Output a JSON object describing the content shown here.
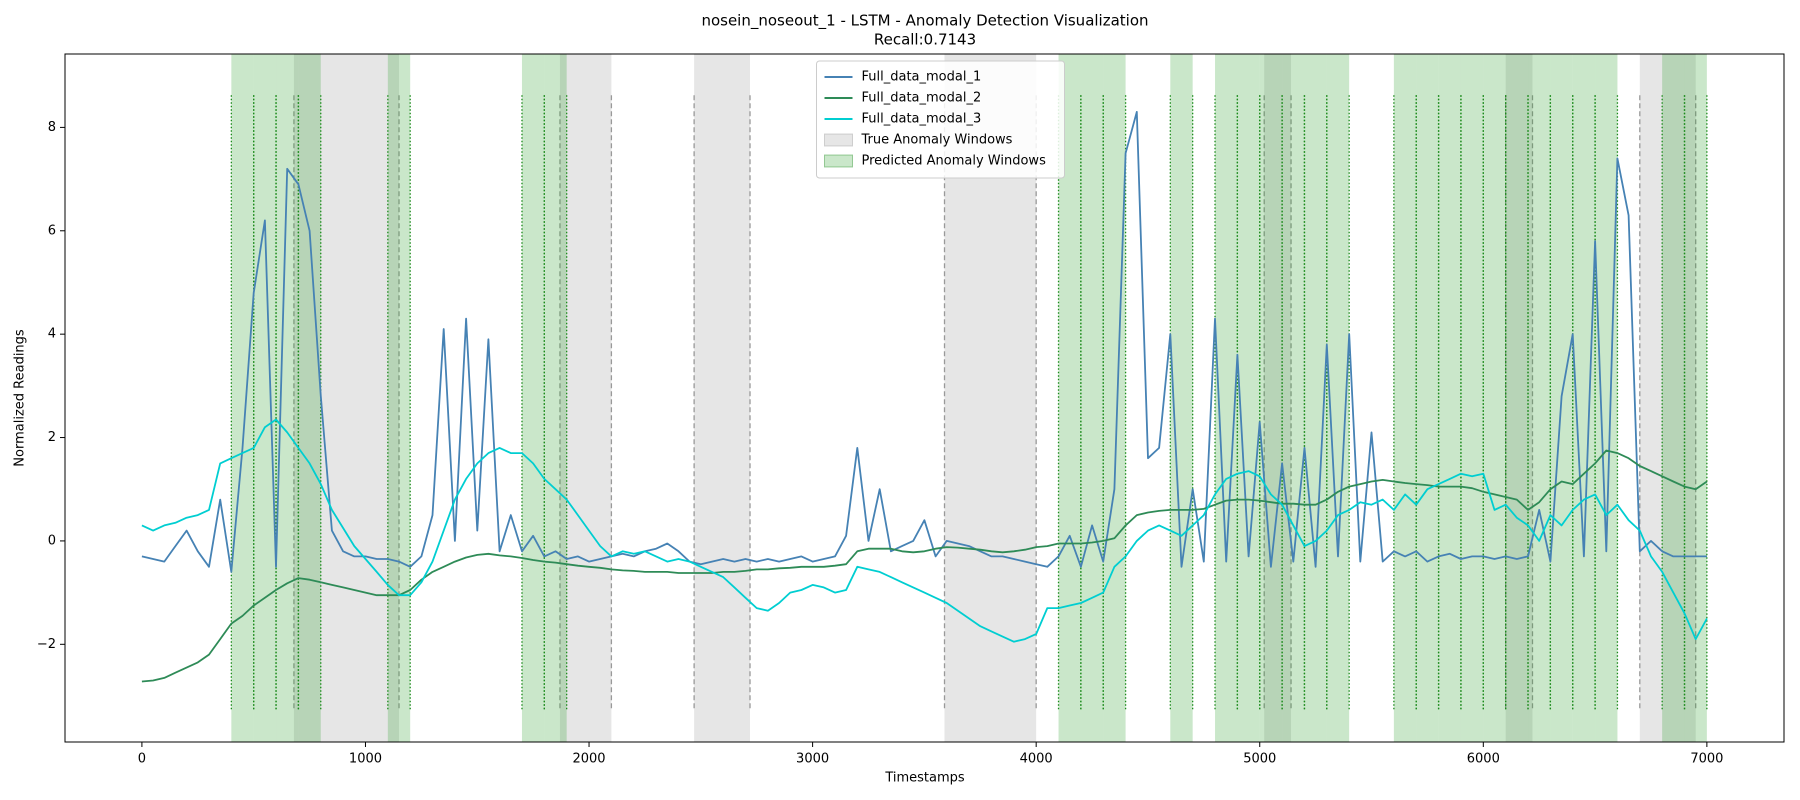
{
  "chart_data": {
    "type": "line",
    "title": "nosein_noseout_1 - LSTM - Anomaly Detection Visualization",
    "subtitle": "Recall:0.7143",
    "x_label": "Timestamps",
    "y_label": "Normalized Readings",
    "xlim": [
      -344,
      7345
    ],
    "ylim": [
      -3.89,
      9.42
    ],
    "xticks": [
      0,
      1000,
      2000,
      3000,
      4000,
      5000,
      6000,
      7000
    ],
    "yticks": [
      {
        "value": -2,
        "label": "−2"
      },
      0,
      2,
      4,
      6,
      8
    ],
    "legend": "upper center",
    "x": [
      0,
      50,
      100,
      150,
      200,
      250,
      300,
      350,
      400,
      450,
      500,
      550,
      600,
      650,
      700,
      750,
      800,
      850,
      900,
      950,
      1000,
      1050,
      1100,
      1150,
      1200,
      1250,
      1300,
      1350,
      1400,
      1450,
      1500,
      1550,
      1600,
      1650,
      1700,
      1750,
      1800,
      1850,
      1900,
      1950,
      2000,
      2050,
      2100,
      2150,
      2200,
      2250,
      2300,
      2350,
      2400,
      2450,
      2500,
      2550,
      2600,
      2650,
      2700,
      2750,
      2800,
      2850,
      2900,
      2950,
      3000,
      3050,
      3100,
      3150,
      3200,
      3250,
      3300,
      3350,
      3400,
      3450,
      3500,
      3550,
      3600,
      3650,
      3700,
      3750,
      3800,
      3850,
      3900,
      3950,
      4000,
      4050,
      4100,
      4150,
      4200,
      4250,
      4300,
      4350,
      4400,
      4450,
      4500,
      4550,
      4600,
      4650,
      4700,
      4750,
      4800,
      4850,
      4900,
      4950,
      5000,
      5050,
      5100,
      5150,
      5200,
      5250,
      5300,
      5350,
      5400,
      5450,
      5500,
      5550,
      5600,
      5650,
      5700,
      5750,
      5800,
      5850,
      5900,
      5950,
      6000,
      6050,
      6100,
      6150,
      6200,
      6250,
      6300,
      6350,
      6400,
      6450,
      6500,
      6550,
      6600,
      6650,
      6700,
      6750,
      6800,
      6850,
      6900,
      6950,
      7000
    ],
    "windows": [
      {
        "name": "True Anomaly Windows",
        "color": "#c8c8c8",
        "edge_color": "#999999",
        "edge_style": "dashed",
        "ranges": [
          [
            680,
            1150
          ],
          [
            1870,
            2100
          ],
          [
            2470,
            2720
          ],
          [
            3590,
            4000
          ],
          [
            5020,
            5140
          ],
          [
            6100,
            6220
          ],
          [
            6700,
            6950
          ]
        ]
      },
      {
        "name": "Predicted Anomaly Windows",
        "color": "#2ca02c",
        "edge_color": "#1a8a1a",
        "edge_style": "dotted",
        "ranges": [
          [
            400,
            500
          ],
          [
            500,
            600
          ],
          [
            600,
            700
          ],
          [
            700,
            800
          ],
          [
            1100,
            1200
          ],
          [
            1700,
            1800
          ],
          [
            1800,
            1900
          ],
          [
            4100,
            4200
          ],
          [
            4200,
            4300
          ],
          [
            4300,
            4400
          ],
          [
            4600,
            4700
          ],
          [
            4800,
            4900
          ],
          [
            4900,
            5000
          ],
          [
            5000,
            5100
          ],
          [
            5100,
            5200
          ],
          [
            5200,
            5300
          ],
          [
            5300,
            5400
          ],
          [
            5600,
            5700
          ],
          [
            5700,
            5800
          ],
          [
            5800,
            5900
          ],
          [
            5900,
            6000
          ],
          [
            6000,
            6100
          ],
          [
            6100,
            6200
          ],
          [
            6200,
            6300
          ],
          [
            6300,
            6400
          ],
          [
            6400,
            6500
          ],
          [
            6500,
            6600
          ],
          [
            6800,
            6900
          ],
          [
            6900,
            7000
          ]
        ]
      }
    ],
    "series": [
      {
        "name": "Full_data_modal_1",
        "color": "#4682b4",
        "values": [
          -0.3,
          -0.35,
          -0.4,
          -0.1,
          0.2,
          -0.2,
          -0.5,
          0.8,
          -0.6,
          1.8,
          4.8,
          6.2,
          -0.5,
          7.2,
          6.9,
          6.0,
          2.8,
          0.2,
          -0.2,
          -0.3,
          -0.3,
          -0.35,
          -0.35,
          -0.4,
          -0.5,
          -0.3,
          0.5,
          4.1,
          0.0,
          4.3,
          0.2,
          3.9,
          -0.2,
          0.5,
          -0.2,
          0.1,
          -0.3,
          -0.2,
          -0.35,
          -0.3,
          -0.4,
          -0.35,
          -0.3,
          -0.25,
          -0.3,
          -0.2,
          -0.15,
          -0.05,
          -0.2,
          -0.4,
          -0.45,
          -0.4,
          -0.35,
          -0.4,
          -0.35,
          -0.4,
          -0.35,
          -0.4,
          -0.35,
          -0.3,
          -0.4,
          -0.35,
          -0.3,
          0.1,
          1.8,
          0.0,
          1.0,
          -0.2,
          -0.1,
          0.0,
          0.4,
          -0.3,
          0.0,
          -0.05,
          -0.1,
          -0.2,
          -0.3,
          -0.3,
          -0.35,
          -0.4,
          -0.45,
          -0.5,
          -0.3,
          0.1,
          -0.5,
          0.3,
          -0.4,
          1.0,
          7.5,
          8.3,
          1.6,
          1.8,
          4.0,
          -0.5,
          1.0,
          -0.4,
          4.3,
          -0.4,
          3.6,
          -0.3,
          2.3,
          -0.5,
          1.5,
          -0.4,
          1.8,
          -0.5,
          3.8,
          -0.3,
          4.0,
          -0.4,
          2.1,
          -0.4,
          -0.2,
          -0.3,
          -0.2,
          -0.4,
          -0.3,
          -0.25,
          -0.35,
          -0.3,
          -0.3,
          -0.35,
          -0.3,
          -0.35,
          -0.3,
          0.6,
          -0.4,
          2.8,
          4.0,
          -0.3,
          5.8,
          -0.2,
          7.4,
          6.3,
          -0.2,
          0.0,
          -0.2,
          -0.3,
          -0.3,
          -0.3,
          -0.3
        ]
      },
      {
        "name": "Full_data_modal_2",
        "color": "#2e8b57",
        "values": [
          -2.72,
          -2.7,
          -2.65,
          -2.55,
          -2.45,
          -2.35,
          -2.2,
          -1.9,
          -1.6,
          -1.45,
          -1.25,
          -1.1,
          -0.95,
          -0.82,
          -0.72,
          -0.75,
          -0.8,
          -0.85,
          -0.9,
          -0.95,
          -1.0,
          -1.05,
          -1.05,
          -1.05,
          -0.95,
          -0.75,
          -0.6,
          -0.5,
          -0.4,
          -0.32,
          -0.27,
          -0.25,
          -0.28,
          -0.3,
          -0.33,
          -0.37,
          -0.4,
          -0.42,
          -0.45,
          -0.48,
          -0.5,
          -0.52,
          -0.55,
          -0.57,
          -0.58,
          -0.6,
          -0.6,
          -0.6,
          -0.62,
          -0.62,
          -0.62,
          -0.62,
          -0.6,
          -0.6,
          -0.58,
          -0.55,
          -0.55,
          -0.53,
          -0.52,
          -0.5,
          -0.5,
          -0.5,
          -0.48,
          -0.45,
          -0.2,
          -0.15,
          -0.15,
          -0.15,
          -0.2,
          -0.22,
          -0.2,
          -0.15,
          -0.12,
          -0.13,
          -0.15,
          -0.17,
          -0.2,
          -0.22,
          -0.2,
          -0.17,
          -0.12,
          -0.1,
          -0.05,
          -0.05,
          -0.05,
          -0.03,
          0.0,
          0.05,
          0.3,
          0.5,
          0.55,
          0.58,
          0.6,
          0.6,
          0.6,
          0.62,
          0.7,
          0.78,
          0.8,
          0.8,
          0.78,
          0.75,
          0.72,
          0.72,
          0.7,
          0.7,
          0.8,
          0.95,
          1.05,
          1.1,
          1.15,
          1.18,
          1.15,
          1.12,
          1.1,
          1.08,
          1.05,
          1.05,
          1.05,
          1.02,
          0.95,
          0.9,
          0.85,
          0.8,
          0.6,
          0.75,
          1.0,
          1.15,
          1.1,
          1.3,
          1.5,
          1.75,
          1.7,
          1.6,
          1.45,
          1.35,
          1.25,
          1.15,
          1.05,
          1.0,
          1.15
        ]
      },
      {
        "name": "Full_data_modal_3",
        "color": "#00ced1",
        "values": [
          0.3,
          0.2,
          0.3,
          0.35,
          0.45,
          0.5,
          0.6,
          1.5,
          1.6,
          1.7,
          1.8,
          2.2,
          2.35,
          2.1,
          1.8,
          1.5,
          1.1,
          0.6,
          0.25,
          -0.1,
          -0.35,
          -0.6,
          -0.85,
          -1.05,
          -1.05,
          -0.8,
          -0.4,
          0.2,
          0.8,
          1.2,
          1.5,
          1.7,
          1.8,
          1.7,
          1.7,
          1.5,
          1.2,
          1.0,
          0.8,
          0.5,
          0.2,
          -0.1,
          -0.3,
          -0.2,
          -0.25,
          -0.2,
          -0.3,
          -0.4,
          -0.35,
          -0.4,
          -0.5,
          -0.6,
          -0.7,
          -0.9,
          -1.1,
          -1.3,
          -1.35,
          -1.2,
          -1.0,
          -0.95,
          -0.85,
          -0.9,
          -1.0,
          -0.95,
          -0.5,
          -0.55,
          -0.6,
          -0.7,
          -0.8,
          -0.9,
          -1.0,
          -1.1,
          -1.2,
          -1.35,
          -1.5,
          -1.65,
          -1.75,
          -1.85,
          -1.95,
          -1.9,
          -1.8,
          -1.3,
          -1.3,
          -1.25,
          -1.2,
          -1.1,
          -1.0,
          -0.5,
          -0.3,
          0.0,
          0.2,
          0.3,
          0.2,
          0.1,
          0.3,
          0.5,
          0.9,
          1.2,
          1.3,
          1.35,
          1.25,
          0.9,
          0.7,
          0.3,
          -0.1,
          0.0,
          0.2,
          0.5,
          0.6,
          0.75,
          0.7,
          0.8,
          0.6,
          0.9,
          0.7,
          1.0,
          1.1,
          1.2,
          1.3,
          1.25,
          1.3,
          0.6,
          0.7,
          0.45,
          0.3,
          0.0,
          0.5,
          0.3,
          0.6,
          0.8,
          0.9,
          0.5,
          0.7,
          0.4,
          0.2,
          -0.3,
          -0.6,
          -1.0,
          -1.4,
          -1.9,
          -1.5
        ]
      }
    ]
  }
}
